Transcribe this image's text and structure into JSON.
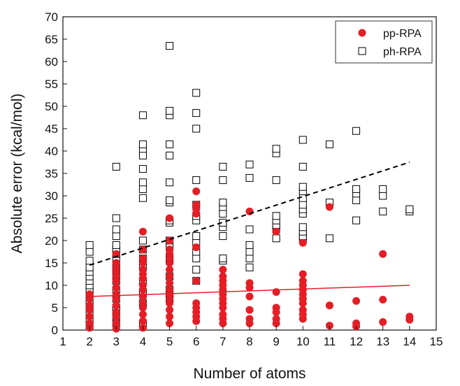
{
  "chart_data": {
    "type": "scatter",
    "xlabel": "Number of atoms",
    "ylabel": "Absolute error (kcal/mol)",
    "xlim": [
      1,
      15
    ],
    "ylim": [
      0,
      70
    ],
    "xticks": [
      1,
      2,
      3,
      4,
      5,
      6,
      7,
      8,
      9,
      10,
      11,
      12,
      13,
      14,
      15
    ],
    "yticks": [
      0,
      5,
      10,
      15,
      20,
      25,
      30,
      35,
      40,
      45,
      50,
      55,
      60,
      65,
      70
    ],
    "grid": false,
    "legend_position": "top-right",
    "series": [
      {
        "name": "pp-RPA",
        "marker": "filled-circle",
        "color": "#e41e26",
        "points": [
          [
            2,
            0.5
          ],
          [
            2,
            1.5
          ],
          [
            2,
            3
          ],
          [
            2,
            4.5
          ],
          [
            2,
            5.5
          ],
          [
            2,
            7
          ],
          [
            2,
            8
          ],
          [
            3,
            0.3
          ],
          [
            3,
            1.5
          ],
          [
            3,
            3
          ],
          [
            3,
            4
          ],
          [
            3,
            5.5
          ],
          [
            3,
            7
          ],
          [
            3,
            8
          ],
          [
            3,
            9.5
          ],
          [
            3,
            11
          ],
          [
            3,
            12
          ],
          [
            3,
            13
          ],
          [
            3,
            14
          ],
          [
            3,
            15
          ],
          [
            3,
            17
          ],
          [
            4,
            0.5
          ],
          [
            4,
            2
          ],
          [
            4,
            3.5
          ],
          [
            4,
            5
          ],
          [
            4,
            6
          ],
          [
            4,
            7.5
          ],
          [
            4,
            9
          ],
          [
            4,
            10
          ],
          [
            4,
            11.5
          ],
          [
            4,
            12.5
          ],
          [
            4,
            13.5
          ],
          [
            4,
            15
          ],
          [
            4,
            16
          ],
          [
            4,
            18
          ],
          [
            4,
            22
          ],
          [
            5,
            1.5
          ],
          [
            5,
            3
          ],
          [
            5,
            4.5
          ],
          [
            5,
            6
          ],
          [
            5,
            7
          ],
          [
            5,
            8
          ],
          [
            5,
            9
          ],
          [
            5,
            10.5
          ],
          [
            5,
            12
          ],
          [
            5,
            13.5
          ],
          [
            5,
            15
          ],
          [
            5,
            16
          ],
          [
            5,
            17
          ],
          [
            5,
            18
          ],
          [
            5,
            20
          ],
          [
            5,
            25
          ],
          [
            6,
            2
          ],
          [
            6,
            3
          ],
          [
            6,
            4
          ],
          [
            6,
            5
          ],
          [
            6,
            6
          ],
          [
            6,
            11
          ],
          [
            6,
            18.5
          ],
          [
            6,
            26
          ],
          [
            6,
            27
          ],
          [
            6,
            28
          ],
          [
            6,
            31
          ],
          [
            7,
            1.5
          ],
          [
            7,
            2.5
          ],
          [
            7,
            3.5
          ],
          [
            7,
            5
          ],
          [
            7,
            6
          ],
          [
            7,
            7
          ],
          [
            7,
            8
          ],
          [
            7,
            9
          ],
          [
            7,
            10
          ],
          [
            7,
            11
          ],
          [
            7,
            12
          ],
          [
            7,
            13.5
          ],
          [
            8,
            1.5
          ],
          [
            8,
            2.5
          ],
          [
            8,
            4.5
          ],
          [
            8,
            7.5
          ],
          [
            8,
            9.5
          ],
          [
            8,
            10.5
          ],
          [
            8,
            26.5
          ],
          [
            9,
            1.5
          ],
          [
            9,
            2.5
          ],
          [
            9,
            4
          ],
          [
            9,
            5
          ],
          [
            9,
            8.5
          ],
          [
            9,
            22
          ],
          [
            10,
            2.5
          ],
          [
            10,
            3.5
          ],
          [
            10,
            4.5
          ],
          [
            10,
            6
          ],
          [
            10,
            7
          ],
          [
            10,
            8
          ],
          [
            10,
            9
          ],
          [
            10,
            10
          ],
          [
            10,
            11
          ],
          [
            10,
            12.5
          ],
          [
            10,
            19.5
          ],
          [
            11,
            1
          ],
          [
            11,
            5.5
          ],
          [
            11,
            27.5
          ],
          [
            12,
            0.8
          ],
          [
            12,
            1.5
          ],
          [
            12,
            6.5
          ],
          [
            13,
            1.8
          ],
          [
            13,
            6.8
          ],
          [
            13,
            17
          ],
          [
            14,
            2.3
          ],
          [
            14,
            3
          ]
        ]
      },
      {
        "name": "ph-RPA",
        "marker": "open-square",
        "color": "#000000",
        "points": [
          [
            2,
            1
          ],
          [
            2,
            2.5
          ],
          [
            2,
            3.5
          ],
          [
            2,
            5
          ],
          [
            2,
            6
          ],
          [
            2,
            6.5
          ],
          [
            2,
            7.5
          ],
          [
            2,
            8.5
          ],
          [
            2,
            9
          ],
          [
            2,
            10
          ],
          [
            2,
            11
          ],
          [
            2,
            12
          ],
          [
            2,
            13
          ],
          [
            2,
            14
          ],
          [
            2,
            15.5
          ],
          [
            2,
            17.5
          ],
          [
            2,
            19
          ],
          [
            3,
            1.5
          ],
          [
            3,
            3
          ],
          [
            3,
            4.5
          ],
          [
            3,
            5
          ],
          [
            3,
            7
          ],
          [
            3,
            9
          ],
          [
            3,
            11
          ],
          [
            3,
            12.5
          ],
          [
            3,
            13.5
          ],
          [
            3,
            14.5
          ],
          [
            3,
            16
          ],
          [
            3,
            17
          ],
          [
            3,
            18
          ],
          [
            3,
            19
          ],
          [
            3,
            21
          ],
          [
            3,
            22.5
          ],
          [
            3,
            25
          ],
          [
            3,
            36.5
          ],
          [
            4,
            1.5
          ],
          [
            4,
            6
          ],
          [
            4,
            8
          ],
          [
            4,
            8.5
          ],
          [
            4,
            11
          ],
          [
            4,
            14
          ],
          [
            4,
            16
          ],
          [
            4,
            18
          ],
          [
            4,
            20
          ],
          [
            4,
            29.5
          ],
          [
            4,
            31.5
          ],
          [
            4,
            33
          ],
          [
            4,
            36
          ],
          [
            4,
            39
          ],
          [
            4,
            40.5
          ],
          [
            4,
            41.5
          ],
          [
            4,
            48
          ],
          [
            5,
            7
          ],
          [
            5,
            8
          ],
          [
            5,
            9
          ],
          [
            5,
            12
          ],
          [
            5,
            15.5
          ],
          [
            5,
            16.5
          ],
          [
            5,
            18.5
          ],
          [
            5,
            20
          ],
          [
            5,
            24
          ],
          [
            5,
            24.5
          ],
          [
            5,
            28.5
          ],
          [
            5,
            29
          ],
          [
            5,
            33
          ],
          [
            5,
            39
          ],
          [
            5,
            41.5
          ],
          [
            5,
            48
          ],
          [
            5,
            49
          ],
          [
            5,
            63.5
          ],
          [
            6,
            11
          ],
          [
            6,
            13.5
          ],
          [
            6,
            16
          ],
          [
            6,
            17.5
          ],
          [
            6,
            19.5
          ],
          [
            6,
            21
          ],
          [
            6,
            24.5
          ],
          [
            6,
            25.5
          ],
          [
            6,
            28
          ],
          [
            6,
            33.5
          ],
          [
            6,
            45
          ],
          [
            6,
            48.5
          ],
          [
            6,
            53
          ],
          [
            7,
            15.5
          ],
          [
            7,
            16
          ],
          [
            7,
            21
          ],
          [
            7,
            23
          ],
          [
            7,
            24
          ],
          [
            7,
            26
          ],
          [
            7,
            27.5
          ],
          [
            7,
            28.5
          ],
          [
            7,
            33.5
          ],
          [
            7,
            36.5
          ],
          [
            8,
            14
          ],
          [
            8,
            16
          ],
          [
            8,
            17.5
          ],
          [
            8,
            19
          ],
          [
            8,
            22.5
          ],
          [
            8,
            34
          ],
          [
            8,
            37
          ],
          [
            9,
            20.5
          ],
          [
            9,
            22.5
          ],
          [
            9,
            23.5
          ],
          [
            9,
            24.5
          ],
          [
            9,
            25.5
          ],
          [
            9,
            33.5
          ],
          [
            9,
            39.5
          ],
          [
            9,
            40.5
          ],
          [
            10,
            20.5
          ],
          [
            10,
            21
          ],
          [
            10,
            22
          ],
          [
            10,
            23
          ],
          [
            10,
            26
          ],
          [
            10,
            27
          ],
          [
            10,
            28
          ],
          [
            10,
            29.5
          ],
          [
            10,
            31
          ],
          [
            10,
            32
          ],
          [
            10,
            36.5
          ],
          [
            10,
            42.5
          ],
          [
            11,
            20.5
          ],
          [
            11,
            28.5
          ],
          [
            11,
            41.5
          ],
          [
            12,
            24.5
          ],
          [
            12,
            29
          ],
          [
            12,
            30.5
          ],
          [
            12,
            31.5
          ],
          [
            12,
            44.5
          ],
          [
            13,
            26.5
          ],
          [
            13,
            30
          ],
          [
            13,
            31.5
          ],
          [
            14,
            26.5
          ],
          [
            14,
            27
          ]
        ]
      }
    ],
    "trendlines": [
      {
        "series": "pp-RPA",
        "style": "solid",
        "color": "#e41e26",
        "from": [
          2,
          7.5
        ],
        "to": [
          14,
          10
        ]
      },
      {
        "series": "ph-RPA",
        "style": "dashed",
        "color": "#000000",
        "from": [
          2,
          14.5
        ],
        "to": [
          14,
          37.5
        ]
      }
    ]
  }
}
